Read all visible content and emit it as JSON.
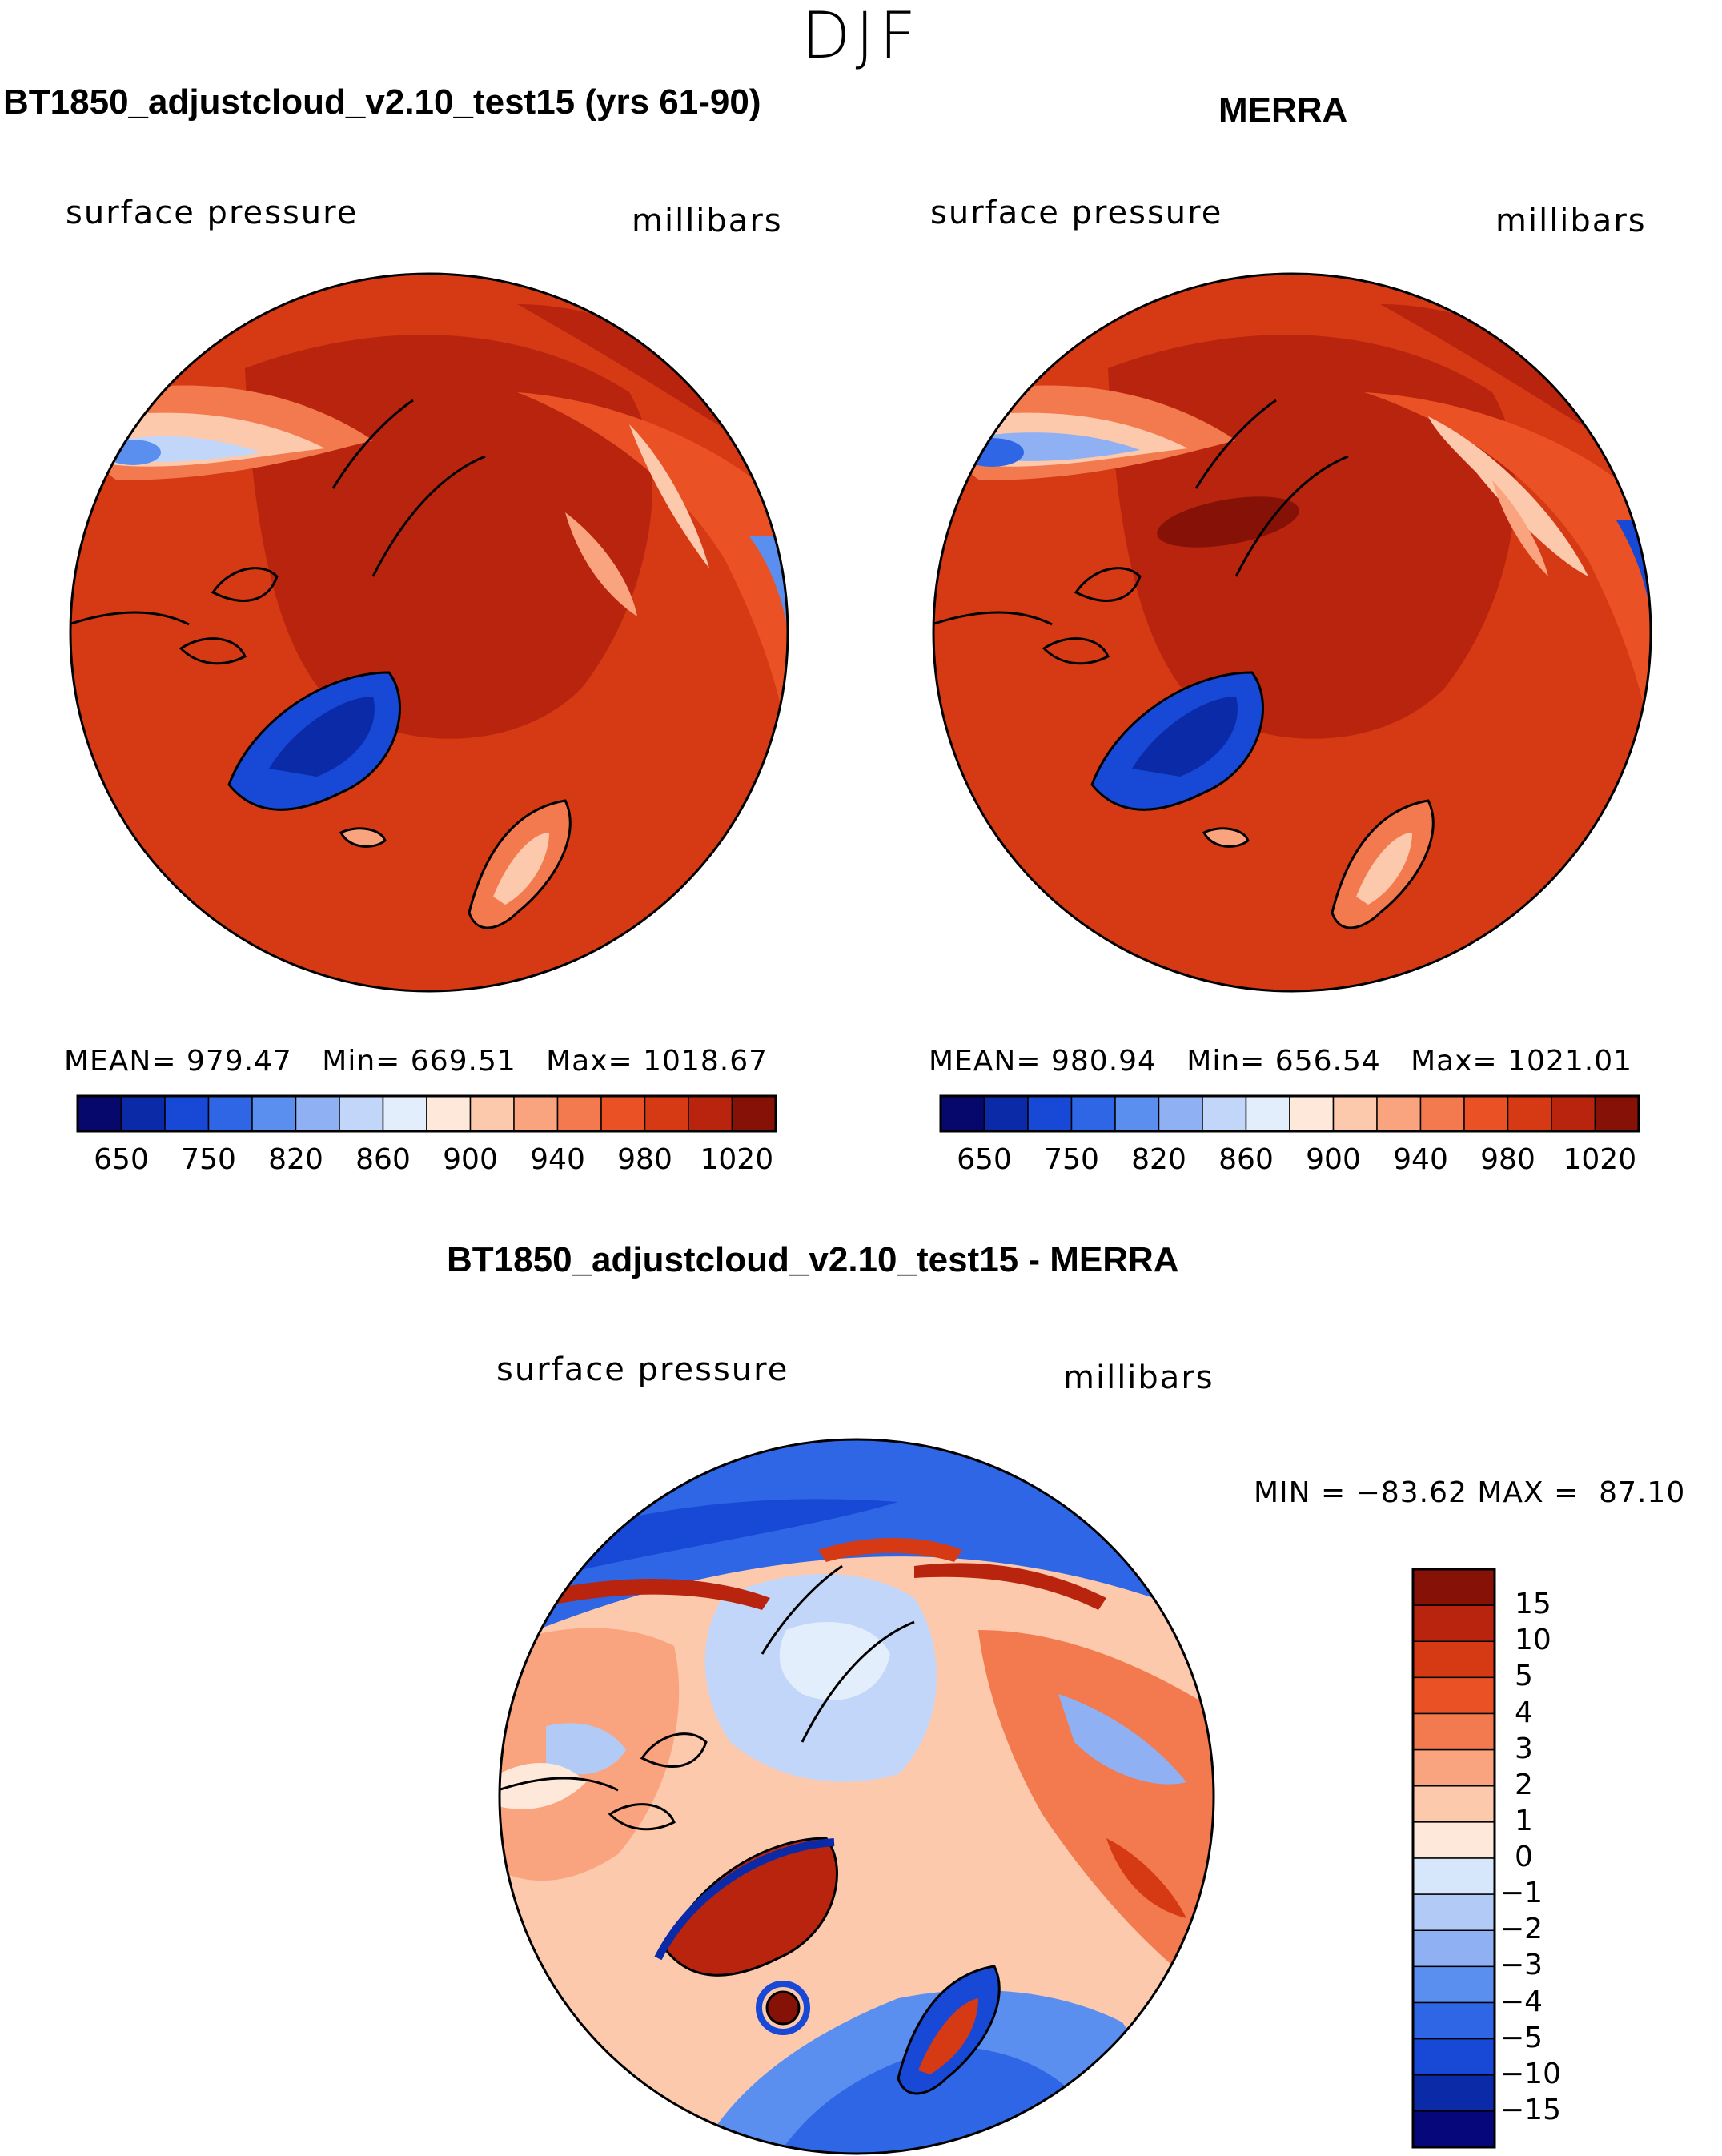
{
  "season": "DJF",
  "panels": [
    {
      "id": "model",
      "title": "BT1850_adjustcloud_v2.10_test15 (yrs 61-90)",
      "variable": "surface pressure",
      "units": "millibars",
      "stats": {
        "mean_label": "MEAN=",
        "mean": "979.47",
        "min_label": "Min=",
        "min": "669.51",
        "max_label": "Max=",
        "max": "1018.67"
      },
      "colorbar_ticks": [
        "650",
        "750",
        "820",
        "860",
        "900",
        "940",
        "980",
        "1020"
      ]
    },
    {
      "id": "obs",
      "title": "MERRA",
      "variable": "surface pressure",
      "units": "millibars",
      "stats": {
        "mean_label": "MEAN=",
        "mean": "980.94",
        "min_label": "Min=",
        "min": "656.54",
        "max_label": "Max=",
        "max": "1021.01"
      },
      "colorbar_ticks": [
        "650",
        "750",
        "820",
        "860",
        "900",
        "940",
        "980",
        "1020"
      ]
    }
  ],
  "diff_panel": {
    "title": "BT1850_adjustcloud_v2.10_test15 - MERRA",
    "variable": "surface pressure",
    "units": "millibars",
    "minmax": "MIN = −83.62 MAX =  87.10",
    "colorbar_ticks": [
      "15",
      "10",
      "5",
      "4",
      "3",
      "2",
      "1",
      "0",
      "−1",
      "−2",
      "−3",
      "−4",
      "−5",
      "−10",
      "−15"
    ]
  },
  "colors": {
    "abs_scale": [
      "#07086b",
      "#0a2aa8",
      "#1748d6",
      "#2f66e6",
      "#5a8ff0",
      "#8fb1f4",
      "#c2d6fa",
      "#e3eefc",
      "#fde8d9",
      "#fcc9ad",
      "#f9a47e",
      "#f27a4e",
      "#ea5226",
      "#d63a14",
      "#b8240d",
      "#861106"
    ],
    "diff_scale": [
      "#861106",
      "#b8240d",
      "#d63a14",
      "#ea5226",
      "#f27a4e",
      "#f9a47e",
      "#fcc9ad",
      "#fde8d9",
      "#d6e6fb",
      "#b1cbf6",
      "#8fb1f4",
      "#5a8ff0",
      "#2f66e6",
      "#1748d6",
      "#0a2aa8",
      "#06077a"
    ]
  },
  "chart_data": [
    {
      "type": "heatmap",
      "title": "BT1850_adjustcloud_v2.10_test15 (yrs 61-90)",
      "projection": "north polar stereographic",
      "field": "surface pressure",
      "units": "millibars",
      "mean": 979.47,
      "min": 669.51,
      "max": 1018.67,
      "levels": [
        650,
        700,
        750,
        800,
        820,
        840,
        860,
        880,
        900,
        920,
        940,
        960,
        980,
        1000,
        1020
      ]
    },
    {
      "type": "heatmap",
      "title": "MERRA",
      "projection": "north polar stereographic",
      "field": "surface pressure",
      "units": "millibars",
      "mean": 980.94,
      "min": 656.54,
      "max": 1021.01,
      "levels": [
        650,
        700,
        750,
        800,
        820,
        840,
        860,
        880,
        900,
        920,
        940,
        960,
        980,
        1000,
        1020
      ]
    },
    {
      "type": "heatmap",
      "title": "BT1850_adjustcloud_v2.10_test15 - MERRA",
      "projection": "north polar stereographic",
      "field": "surface pressure difference",
      "units": "millibars",
      "min": -83.62,
      "max": 87.1,
      "levels": [
        -15,
        -10,
        -5,
        -4,
        -3,
        -2,
        -1,
        0,
        1,
        2,
        3,
        4,
        5,
        10,
        15
      ]
    }
  ]
}
